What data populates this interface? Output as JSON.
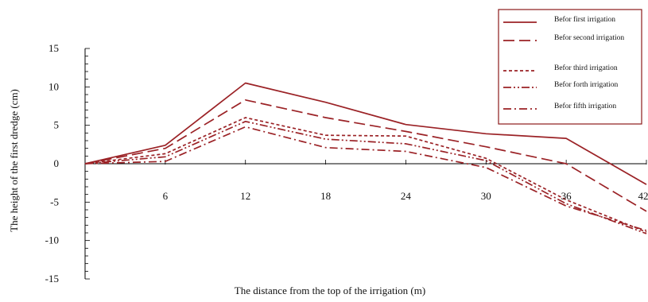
{
  "chart_data": {
    "type": "line",
    "title": "",
    "xlabel": "The distance from the top of the irrigation (m)",
    "ylabel": "The height of the first dredge (cm)",
    "x": [
      0,
      6,
      12,
      18,
      24,
      30,
      36,
      42
    ],
    "x_tick_labels": [
      "6",
      "12",
      "18",
      "24",
      "30",
      "36",
      "42"
    ],
    "y_ticks": [
      15,
      10,
      5,
      0,
      -5,
      -10,
      -15
    ],
    "xlim": [
      0,
      42
    ],
    "ylim": [
      -15,
      15
    ],
    "grid": false,
    "legend_position": "top-right",
    "series": [
      {
        "name": "Befor first irrigation",
        "values": [
          0,
          2.4,
          10.5,
          8.0,
          5.1,
          3.9,
          3.3,
          -2.7
        ],
        "style": "solid",
        "color": "#9b2226"
      },
      {
        "name": "Befor second irrigation",
        "values": [
          0,
          2.0,
          8.3,
          6.0,
          4.2,
          2.2,
          0.0,
          -6.2
        ],
        "style": "long-dash",
        "color": "#9b2226"
      },
      {
        "name": "Befor third irrigation",
        "values": [
          0,
          1.3,
          6.0,
          3.7,
          3.6,
          0.7,
          -4.7,
          -8.9
        ],
        "style": "short-dash",
        "color": "#9b2226"
      },
      {
        "name": "Befor forth irrigation",
        "values": [
          0,
          0.9,
          5.5,
          3.2,
          2.6,
          0.4,
          -5.2,
          -9.1
        ],
        "style": "dash-dot-dot",
        "color": "#9b2226"
      },
      {
        "name": "Befor fifth irrigation",
        "values": [
          0,
          0.3,
          4.8,
          2.1,
          1.6,
          -0.5,
          -5.5,
          -8.7
        ],
        "style": "dash-dot",
        "color": "#9b2226"
      }
    ]
  }
}
